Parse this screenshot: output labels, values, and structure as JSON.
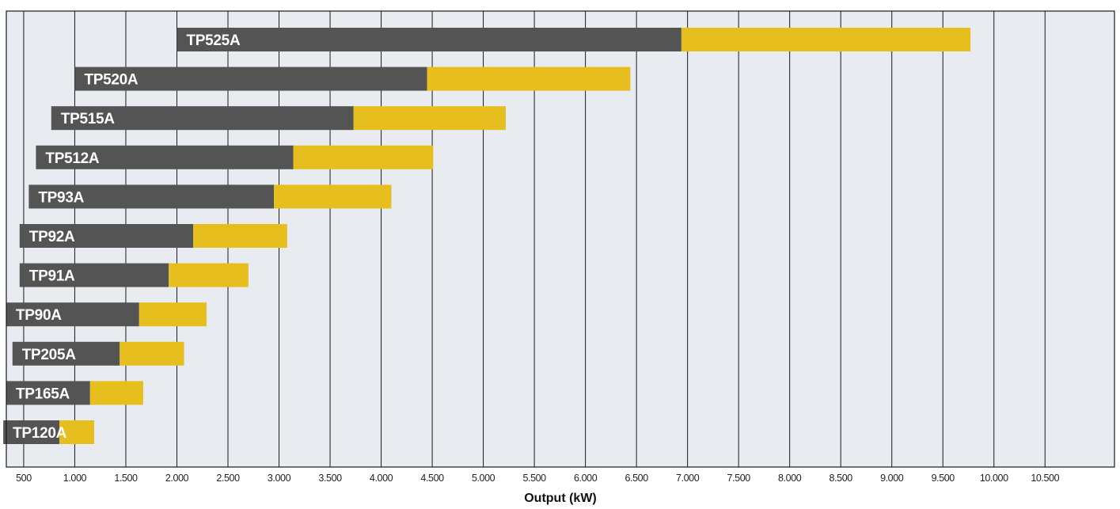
{
  "chart_data": {
    "type": "bar",
    "orientation": "horizontal",
    "stacked": true,
    "title": "",
    "xlabel": "Output (kW)",
    "ylabel": "",
    "xlim": [
      330,
      11180
    ],
    "x_ticks": [
      500,
      1000,
      1500,
      2000,
      2500,
      3000,
      3500,
      4000,
      4500,
      5000,
      5500,
      6000,
      6500,
      7000,
      7500,
      8000,
      8500,
      9000,
      9500,
      10000,
      10500
    ],
    "x_tick_labels": [
      "500",
      "1.000",
      "1.500",
      "2.000",
      "2.500",
      "3.000",
      "3.500",
      "4.000",
      "4.500",
      "5.000",
      "5.500",
      "6.000",
      "6.500",
      "7.000",
      "7.500",
      "8.000",
      "8.500",
      "9.000",
      "9.500",
      "10.000",
      "10.500"
    ],
    "grid": "vertical",
    "legend": "none",
    "colors": {
      "background": "#e8ebf0",
      "gridline": "#1a1a1a",
      "dark_segment": "#545454",
      "yellow_segment": "#e6be1e",
      "label_text": "#ffffff"
    },
    "categories": [
      "TP525A",
      "TP520A",
      "TP515A",
      "TP512A",
      "TP93A",
      "TP92A",
      "TP91A",
      "TP90A",
      "TP205A",
      "TP165A",
      "TP120A"
    ],
    "series": [
      {
        "values_start": [
          2000,
          1000,
          770,
          620,
          550,
          460,
          460,
          330,
          390,
          330,
          300
        ],
        "values_end": [
          6940,
          4450,
          3730,
          3140,
          2950,
          2160,
          1920,
          1630,
          1440,
          1150,
          850
        ]
      },
      {
        "values_start": [
          6940,
          4450,
          3730,
          3140,
          2950,
          2160,
          1920,
          1630,
          1440,
          1150,
          850
        ],
        "values_end": [
          9770,
          6440,
          5220,
          4510,
          4100,
          3080,
          2700,
          2290,
          2070,
          1670,
          1190
        ]
      }
    ]
  }
}
